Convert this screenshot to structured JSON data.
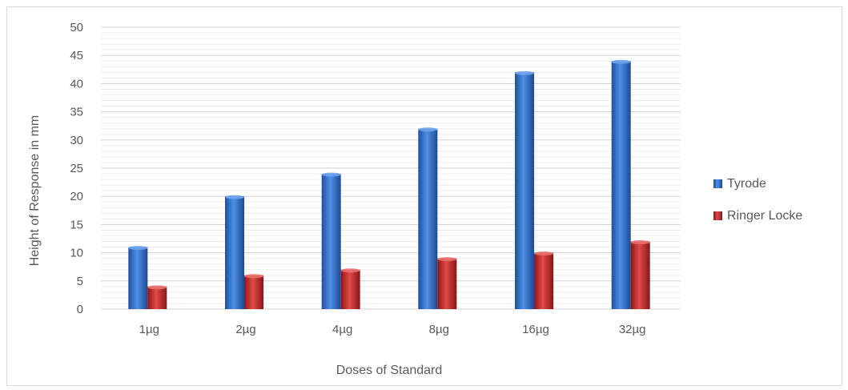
{
  "chart_data": {
    "type": "bar",
    "categories": [
      "1µg",
      "2µg",
      "4µg",
      "8µg",
      "16µg",
      "32µg"
    ],
    "series": [
      {
        "name": "Tyrode",
        "values": [
          11,
          20,
          24,
          32,
          42,
          44
        ],
        "color": "#2e6fcf"
      },
      {
        "name": "Ringer Locke",
        "values": [
          4,
          6,
          7,
          9,
          10,
          12
        ],
        "color": "#c0282a"
      }
    ],
    "xlabel": "Doses of Standard",
    "ylabel": "Height of Response in mm",
    "ylim": [
      0,
      50
    ],
    "ytick_step": 5,
    "grid": true,
    "legend_position": "right"
  }
}
